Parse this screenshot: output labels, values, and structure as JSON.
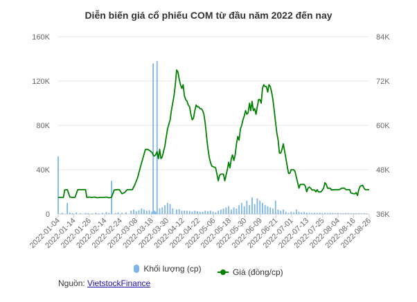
{
  "chart_data": {
    "type": "bar+line",
    "title": "Diễn biến giá cổ phiếu COM từ đầu năm 2022 đến nay",
    "x_tick_labels": [
      "2022-01-04",
      "2022-01-14",
      "2022-01-26",
      "2022-02-14",
      "2022-02-24",
      "2022-03-08",
      "2022-03-18",
      "2022-03-30",
      "2022-04-12",
      "2022-04-22",
      "2022-05-06",
      "2022-05-18",
      "2022-05-30",
      "2022-06-09",
      "2022-06-21",
      "2022-07-01",
      "2022-07-13",
      "2022-07-25",
      "2022-08-04",
      "2022-08-16",
      "2022-08-26"
    ],
    "left_axis": {
      "ylim": [
        0,
        160000
      ],
      "ticks": [
        "0",
        "40K",
        "80K",
        "120K",
        "160K"
      ]
    },
    "right_axis": {
      "ylim": [
        36000,
        84000
      ],
      "ticks": [
        "36K",
        "48K",
        "60K",
        "72K",
        "84K"
      ]
    },
    "x_range_days": [
      0,
      239
    ],
    "series": [
      {
        "name": "Khối lượng (cp)",
        "type": "column",
        "color": "#7cb5ec",
        "axis": "left",
        "points": [
          [
            0,
            52000
          ],
          [
            3,
            1000
          ],
          [
            7,
            10000
          ],
          [
            9,
            1200
          ],
          [
            11,
            800
          ],
          [
            14,
            1500
          ],
          [
            17,
            600
          ],
          [
            21,
            900
          ],
          [
            23,
            700
          ],
          [
            26,
            600
          ],
          [
            29,
            1200
          ],
          [
            31,
            600
          ],
          [
            34,
            1000
          ],
          [
            37,
            1800
          ],
          [
            39,
            1000
          ],
          [
            41,
            30000
          ],
          [
            44,
            900
          ],
          [
            46,
            1500
          ],
          [
            49,
            1100
          ],
          [
            52,
            1600
          ],
          [
            56,
            3000
          ],
          [
            58,
            4000
          ],
          [
            60,
            2500
          ],
          [
            62,
            3500
          ],
          [
            64,
            5000
          ],
          [
            66,
            4000
          ],
          [
            68,
            3000
          ],
          [
            70,
            3500
          ],
          [
            72,
            2000
          ],
          [
            73,
            136000
          ],
          [
            74,
            3000
          ],
          [
            75,
            2000
          ],
          [
            76,
            138000
          ],
          [
            78,
            5000
          ],
          [
            80,
            6000
          ],
          [
            82,
            8000
          ],
          [
            84,
            10000
          ],
          [
            86,
            9000
          ],
          [
            88,
            5000
          ],
          [
            91,
            4000
          ],
          [
            93,
            4500
          ],
          [
            95,
            3000
          ],
          [
            97,
            3200
          ],
          [
            99,
            3000
          ],
          [
            101,
            2800
          ],
          [
            103,
            2200
          ],
          [
            105,
            3000
          ],
          [
            107,
            2500
          ],
          [
            109,
            2000
          ],
          [
            111,
            2000
          ],
          [
            113,
            3000
          ],
          [
            115,
            2500
          ],
          [
            117,
            3000
          ],
          [
            119,
            2000
          ],
          [
            121,
            1500
          ],
          [
            123,
            3000
          ],
          [
            125,
            4000
          ],
          [
            127,
            5000
          ],
          [
            129,
            6000
          ],
          [
            131,
            7000
          ],
          [
            133,
            4000
          ],
          [
            135,
            6000
          ],
          [
            137,
            5000
          ],
          [
            139,
            8000
          ],
          [
            141,
            10000
          ],
          [
            143,
            7000
          ],
          [
            145,
            12000
          ],
          [
            147,
            8000
          ],
          [
            149,
            15000
          ],
          [
            151,
            9000
          ],
          [
            153,
            14000
          ],
          [
            155,
            12000
          ],
          [
            157,
            10000
          ],
          [
            159,
            8000
          ],
          [
            161,
            7000
          ],
          [
            163,
            6000
          ],
          [
            165,
            5000
          ],
          [
            167,
            12000
          ],
          [
            169,
            4000
          ],
          [
            171,
            3000
          ],
          [
            173,
            4000
          ],
          [
            175,
            2000
          ],
          [
            177,
            1000
          ],
          [
            179,
            2000
          ],
          [
            181,
            1500
          ],
          [
            183,
            4000
          ],
          [
            185,
            2000
          ],
          [
            187,
            1500
          ],
          [
            189,
            1800
          ],
          [
            191,
            1200
          ],
          [
            193,
            1000
          ],
          [
            195,
            900
          ],
          [
            197,
            1100
          ],
          [
            199,
            1000
          ],
          [
            201,
            1200
          ],
          [
            203,
            900
          ],
          [
            205,
            1000
          ],
          [
            207,
            800
          ],
          [
            209,
            1000
          ],
          [
            211,
            900
          ],
          [
            213,
            700
          ],
          [
            215,
            900
          ],
          [
            217,
            700
          ],
          [
            219,
            600
          ],
          [
            221,
            800
          ],
          [
            223,
            700
          ],
          [
            225,
            600
          ],
          [
            227,
            700
          ],
          [
            229,
            600
          ],
          [
            231,
            700
          ],
          [
            233,
            500
          ],
          [
            235,
            600
          ],
          [
            237,
            500
          ]
        ]
      },
      {
        "name": "Giá (đồng/cp)",
        "type": "line",
        "color": "#008000",
        "axis": "right",
        "points": [
          [
            0,
            40500
          ],
          [
            2,
            40500
          ],
          [
            4,
            40500
          ],
          [
            5,
            42500
          ],
          [
            7,
            42600
          ],
          [
            9,
            40600
          ],
          [
            11,
            40500
          ],
          [
            13,
            40500
          ],
          [
            15,
            42600
          ],
          [
            17,
            42600
          ],
          [
            19,
            42600
          ],
          [
            21,
            42600
          ],
          [
            22,
            40500
          ],
          [
            24,
            40600
          ],
          [
            26,
            40500
          ],
          [
            28,
            40600
          ],
          [
            30,
            40400
          ],
          [
            32,
            40500
          ],
          [
            35,
            40500
          ],
          [
            37,
            40600
          ],
          [
            39,
            40400
          ],
          [
            41,
            40500
          ],
          [
            43,
            42500
          ],
          [
            45,
            42600
          ],
          [
            47,
            42600
          ],
          [
            49,
            41500
          ],
          [
            51,
            41800
          ],
          [
            53,
            42600
          ],
          [
            55,
            42600
          ],
          [
            57,
            42600
          ],
          [
            59,
            44000
          ],
          [
            61,
            45800
          ],
          [
            63,
            48500
          ],
          [
            65,
            51000
          ],
          [
            67,
            53500
          ],
          [
            69,
            53500
          ],
          [
            71,
            53000
          ],
          [
            72,
            52700
          ],
          [
            73,
            52000
          ],
          [
            74,
            51700
          ],
          [
            75,
            52100
          ],
          [
            76,
            52900
          ],
          [
            77,
            51000
          ],
          [
            78,
            53500
          ],
          [
            79,
            51000
          ],
          [
            80,
            51500
          ],
          [
            82,
            54500
          ],
          [
            84,
            59000
          ],
          [
            86,
            61500
          ],
          [
            87,
            64000
          ],
          [
            88,
            66000
          ],
          [
            89,
            68000
          ],
          [
            90,
            71000
          ],
          [
            91,
            75000
          ],
          [
            92,
            74500
          ],
          [
            93,
            72500
          ],
          [
            94,
            71000
          ],
          [
            95,
            70000
          ],
          [
            96,
            71000
          ],
          [
            97,
            68000
          ],
          [
            98,
            67000
          ],
          [
            99,
            66500
          ],
          [
            100,
            65500
          ],
          [
            101,
            65000
          ],
          [
            102,
            63000
          ],
          [
            103,
            61500
          ],
          [
            104,
            62000
          ],
          [
            105,
            64000
          ],
          [
            106,
            65500
          ],
          [
            107,
            65000
          ],
          [
            108,
            65000
          ],
          [
            109,
            64500
          ],
          [
            110,
            64500
          ],
          [
            111,
            64000
          ],
          [
            112,
            63000
          ],
          [
            113,
            60500
          ],
          [
            114,
            57000
          ],
          [
            115,
            54000
          ],
          [
            116,
            51500
          ],
          [
            117,
            50000
          ],
          [
            118,
            49000
          ],
          [
            119,
            48800
          ],
          [
            120,
            48700
          ],
          [
            121,
            48500
          ],
          [
            122,
            46800
          ],
          [
            123,
            45000
          ],
          [
            124,
            46500
          ],
          [
            125,
            46800
          ],
          [
            126,
            46800
          ],
          [
            127,
            46800
          ],
          [
            128,
            45000
          ],
          [
            129,
            46500
          ],
          [
            130,
            48000
          ],
          [
            131,
            50000
          ],
          [
            132,
            48500
          ],
          [
            133,
            51000
          ],
          [
            134,
            52000
          ],
          [
            135,
            50500
          ],
          [
            136,
            52000
          ],
          [
            137,
            55000
          ],
          [
            138,
            57000
          ],
          [
            139,
            56000
          ],
          [
            140,
            59000
          ],
          [
            141,
            60000
          ],
          [
            142,
            61500
          ],
          [
            143,
            62500
          ],
          [
            144,
            64000
          ],
          [
            145,
            63000
          ],
          [
            146,
            63500
          ],
          [
            147,
            66000
          ],
          [
            148,
            64000
          ],
          [
            149,
            66500
          ],
          [
            150,
            64000
          ],
          [
            151,
            64500
          ],
          [
            152,
            63000
          ],
          [
            153,
            65000
          ],
          [
            154,
            67000
          ],
          [
            155,
            67000
          ],
          [
            156,
            66000
          ],
          [
            157,
            70000
          ],
          [
            158,
            71000
          ],
          [
            159,
            70500
          ],
          [
            160,
            70500
          ],
          [
            161,
            69000
          ],
          [
            162,
            71000
          ],
          [
            163,
            70500
          ],
          [
            164,
            69000
          ],
          [
            165,
            67000
          ],
          [
            166,
            64000
          ],
          [
            167,
            61000
          ],
          [
            168,
            58000
          ],
          [
            169,
            56000
          ],
          [
            170,
            52500
          ],
          [
            171,
            52500
          ],
          [
            172,
            53500
          ],
          [
            173,
            55000
          ],
          [
            174,
            53000
          ],
          [
            175,
            51000
          ],
          [
            176,
            49000
          ],
          [
            177,
            47000
          ],
          [
            178,
            47000
          ],
          [
            179,
            48000
          ],
          [
            180,
            48000
          ],
          [
            181,
            48000
          ],
          [
            182,
            47500
          ],
          [
            183,
            46000
          ],
          [
            184,
            44500
          ],
          [
            185,
            43000
          ],
          [
            186,
            44000
          ],
          [
            187,
            44000
          ],
          [
            188,
            44000
          ],
          [
            189,
            44000
          ],
          [
            190,
            43500
          ],
          [
            191,
            42000
          ],
          [
            192,
            43000
          ],
          [
            193,
            43300
          ],
          [
            194,
            43000
          ],
          [
            195,
            42500
          ],
          [
            196,
            42500
          ],
          [
            197,
            42500
          ],
          [
            198,
            42000
          ],
          [
            199,
            42600
          ],
          [
            200,
            42000
          ],
          [
            202,
            42000
          ],
          [
            204,
            43000
          ],
          [
            205,
            44500
          ],
          [
            206,
            44000
          ],
          [
            207,
            43000
          ],
          [
            208,
            43000
          ],
          [
            209,
            43000
          ],
          [
            210,
            42500
          ],
          [
            212,
            42600
          ],
          [
            214,
            42600
          ],
          [
            216,
            42600
          ],
          [
            218,
            43000
          ],
          [
            220,
            43000
          ],
          [
            221,
            42600
          ],
          [
            222,
            42600
          ],
          [
            223,
            42600
          ],
          [
            224,
            42600
          ],
          [
            225,
            41700
          ],
          [
            226,
            41600
          ],
          [
            227,
            41500
          ],
          [
            228,
            41500
          ],
          [
            229,
            41800
          ],
          [
            230,
            41000
          ],
          [
            231,
            42600
          ],
          [
            232,
            43500
          ],
          [
            234,
            43800
          ],
          [
            235,
            43000
          ],
          [
            236,
            42600
          ],
          [
            237,
            42600
          ],
          [
            238,
            42600
          ],
          [
            239,
            42600
          ]
        ]
      }
    ],
    "legend": {
      "position": "bottom"
    },
    "grid": true
  },
  "legend": {
    "volume_label": "Khối lượng (cp)",
    "price_label": "Giá (đồng/cp)"
  },
  "source": {
    "prefix": "Nguồn:",
    "link_text": "VietstockFinance"
  },
  "colors": {
    "volume": "#7cb5ec",
    "price": "#008000",
    "grid": "#e6e6e6",
    "text": "#666666"
  }
}
